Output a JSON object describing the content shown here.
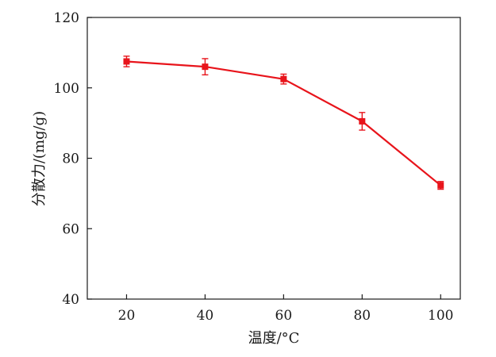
{
  "chart_data": {
    "type": "line",
    "title": "",
    "xlabel": "温度/°C",
    "ylabel": "分散力/(mg/g)",
    "xlim": [
      10,
      105
    ],
    "ylim": [
      40,
      120
    ],
    "x_ticks": [
      20,
      40,
      60,
      80,
      100
    ],
    "y_ticks": [
      40,
      60,
      80,
      100,
      120
    ],
    "grid": false,
    "legend": "none",
    "series": [
      {
        "x": [
          20,
          40,
          60,
          80,
          100
        ],
        "y": [
          107.5,
          106.0,
          102.5,
          90.5,
          72.3
        ],
        "error": [
          1.5,
          2.3,
          1.4,
          2.5,
          1.1
        ],
        "color": "#e8141b",
        "marker": "square"
      }
    ]
  }
}
